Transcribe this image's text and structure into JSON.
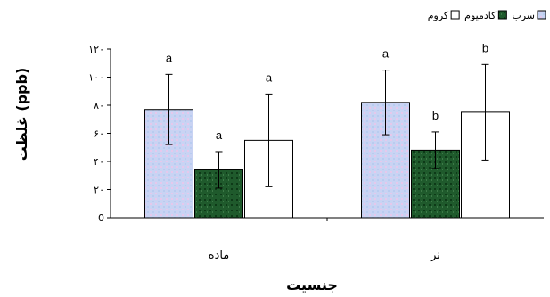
{
  "chart_data": {
    "type": "bar",
    "xlabel": "جنسیت",
    "ylabel": "غلظت (ppb)",
    "categories": [
      "ماده",
      "نر"
    ],
    "ylim": [
      0,
      120
    ],
    "yticks": [
      0,
      20,
      40,
      60,
      80,
      100,
      120
    ],
    "ytick_labels": [
      "0",
      "۲۰",
      "۴۰",
      "۶۰",
      "۸۰",
      "۱۰۰",
      "۱۲۰"
    ],
    "grid": false,
    "legend_position": "top-right",
    "series": [
      {
        "name": "سرب",
        "color": "#c8d4f2",
        "values": [
          77,
          82
        ],
        "error": [
          25,
          23
        ],
        "letters": [
          "a",
          "a"
        ]
      },
      {
        "name": "کادمیوم",
        "color": "#1f5a2c",
        "values": [
          34,
          48
        ],
        "error": [
          13,
          13
        ],
        "letters": [
          "a",
          "b"
        ]
      },
      {
        "name": "کروم",
        "color": "#ffffff",
        "values": [
          55,
          75
        ],
        "error": [
          33,
          34
        ],
        "letters": [
          "a",
          "b"
        ]
      }
    ]
  }
}
